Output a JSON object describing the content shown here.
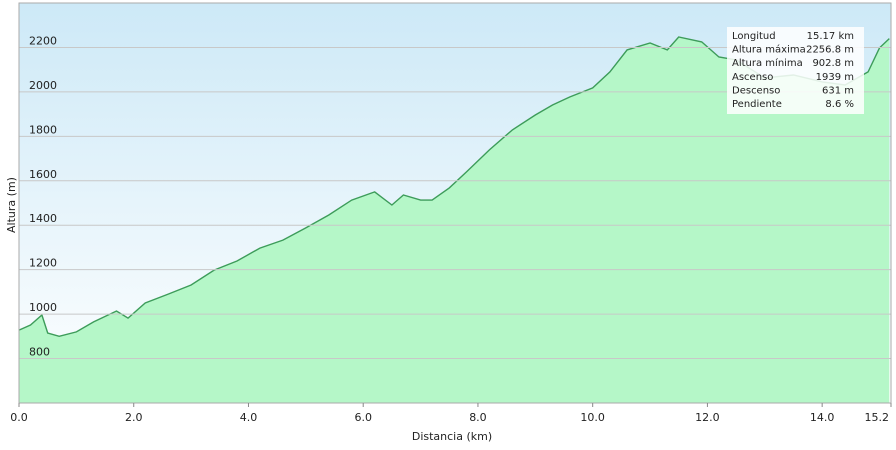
{
  "chart_data": {
    "type": "area",
    "x_label": "Distancia  (km)",
    "y_label": "Altura (m)",
    "x": [
      0,
      0.2,
      0.4,
      0.5,
      0.7,
      1.0,
      1.3,
      1.7,
      1.9,
      2.2,
      2.6,
      3.0,
      3.4,
      3.8,
      4.2,
      4.6,
      5.0,
      5.4,
      5.8,
      6.2,
      6.5,
      6.7,
      7.0,
      7.2,
      7.5,
      7.8,
      8.2,
      8.6,
      9.0,
      9.3,
      9.6,
      10.0,
      10.3,
      10.6,
      11.0,
      11.3,
      11.5,
      11.9,
      12.2,
      12.5,
      13.0,
      13.5,
      14.0,
      14.4,
      14.8,
      15.0,
      15.17
    ],
    "values": [
      928,
      951,
      996,
      915,
      900,
      920,
      965,
      1014,
      982,
      1050,
      1090,
      1131,
      1198,
      1239,
      1297,
      1333,
      1388,
      1446,
      1513,
      1550,
      1491,
      1536,
      1513,
      1513,
      1568,
      1640,
      1739,
      1829,
      1896,
      1941,
      1977,
      2018,
      2090,
      2189,
      2220,
      2189,
      2247,
      2225,
      2157,
      2144,
      2063,
      2076,
      2045,
      2031,
      2090,
      2198,
      2240
    ],
    "color": "#3d9c5a",
    "fill": "#b5f7c8",
    "xlim": [
      0,
      15.2
    ],
    "ylim": [
      600,
      2400
    ],
    "xticks": [
      {
        "value": 0,
        "label": "0.0"
      },
      {
        "value": 2,
        "label": "2.0"
      },
      {
        "value": 4,
        "label": "4.0"
      },
      {
        "value": 6,
        "label": "6.0"
      },
      {
        "value": 8,
        "label": "8.0"
      },
      {
        "value": 10,
        "label": "10.0"
      },
      {
        "value": 12,
        "label": "12.0"
      },
      {
        "value": 14,
        "label": "14.0"
      },
      15.2
    ],
    "yticks": [
      800,
      1000,
      1200,
      1400,
      1600,
      1800,
      2000,
      2200
    ],
    "grid": true,
    "stats": [
      [
        "Longitud",
        "15.17 km"
      ],
      [
        "Altura máxima",
        "2256.8 m"
      ],
      [
        "Altura mínima",
        "902.8 m"
      ],
      [
        "Ascenso",
        "1939 m"
      ],
      [
        "Descenso",
        "631 m"
      ],
      [
        "Pendiente",
        "8.6 %"
      ]
    ]
  }
}
